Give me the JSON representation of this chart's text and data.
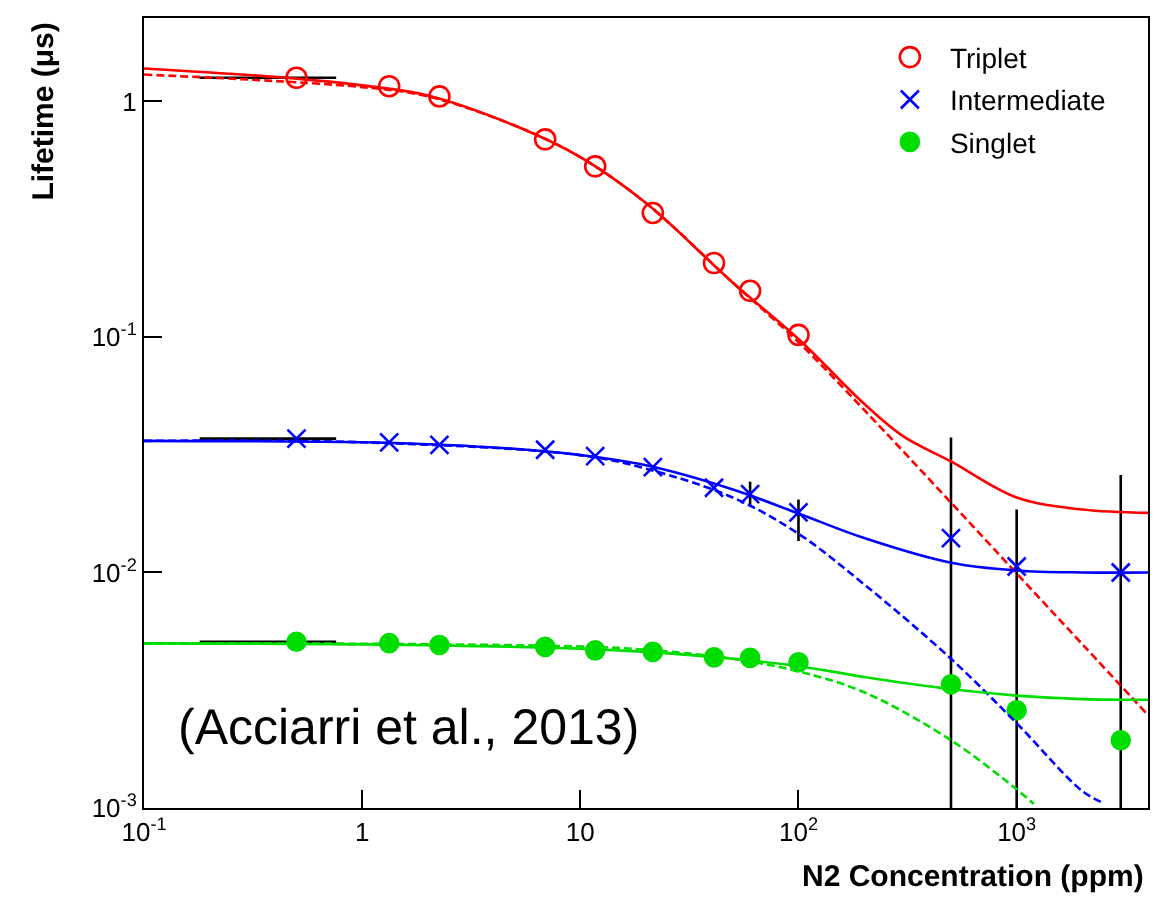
{
  "chart_data": {
    "type": "scatter",
    "xlabel": "N2 Concentration (ppm)",
    "ylabel": "Lifetime (μs)",
    "log": "xy",
    "legend": "top right",
    "xlim": [
      0.1,
      4000
    ],
    "ylim": [
      0.001,
      2.26
    ],
    "xticks": [
      {
        "value": 0.1,
        "label": "10$^{-1}$"
      },
      1,
      10,
      {
        "value": 100,
        "label": "10$^{2}$"
      },
      {
        "value": 1000,
        "label": "10$^{3}$"
      }
    ],
    "yticks": [
      {
        "value": 0.001,
        "label": "10$^{-3}$"
      },
      {
        "value": 0.01,
        "label": "10$^{-2}$"
      },
      {
        "value": 0.1,
        "label": "10$^{-1}$"
      },
      1
    ],
    "annotations": [
      "(Acciarri et al., 2013)"
    ],
    "x": [
      0.5,
      1.33,
      2.26,
      6.9,
      11.7,
      21.5,
      41,
      60,
      100,
      500,
      1000,
      3000
    ],
    "series": [
      {
        "name": "Triplet",
        "color": "#ff0000",
        "marker": "circle-open",
        "x": [
          0.5,
          1.33,
          2.26,
          6.9,
          11.7,
          21.5,
          41,
          60,
          100
        ],
        "values": [
          1.26,
          1.16,
          1.05,
          0.69,
          0.53,
          0.336,
          0.206,
          0.157,
          0.102
        ],
        "xerrors": [
          [
            0.18,
            0.76
          ],
          null,
          null,
          null,
          null,
          null,
          null,
          null,
          null
        ]
      },
      {
        "name": "Intermediate",
        "color": "#0000ff",
        "marker": "cross",
        "values": [
          0.037,
          0.0357,
          0.0348,
          0.0332,
          0.0312,
          0.028,
          0.0229,
          0.0215,
          0.018,
          0.014,
          0.0106,
          0.01
        ],
        "xerrors": [
          [
            0.18,
            0.76
          ],
          null,
          null,
          null,
          null,
          null,
          null,
          null,
          null,
          null,
          null,
          null
        ],
        "errors": [
          null,
          null,
          null,
          null,
          null,
          null,
          null,
          [
            0.0193,
            0.0243
          ],
          [
            0.0136,
            0.0204
          ],
          [
            0.001,
            0.0374
          ],
          [
            0.001,
            0.0185
          ],
          [
            0.001,
            0.0259
          ]
        ]
      },
      {
        "name": "Singlet",
        "color": "#00dd00",
        "marker": "circle",
        "values": [
          0.00508,
          0.00501,
          0.00492,
          0.00483,
          0.00467,
          0.0046,
          0.00436,
          0.00434,
          0.00416,
          0.00335,
          0.0026,
          0.00194
        ],
        "xerrors": [
          [
            0.18,
            0.76
          ],
          null,
          null,
          null,
          null,
          null,
          null,
          null,
          null,
          null,
          null,
          null
        ]
      },
      {
        "type": "line",
        "color": "#ff0000",
        "line_style": "solid",
        "x": [
          0.1,
          0.5,
          1,
          2,
          5,
          10,
          20,
          50,
          100,
          200,
          300,
          500,
          1000,
          2000,
          4000
        ],
        "values": [
          1.38,
          1.25,
          1.17,
          1.06,
          0.79,
          0.58,
          0.37,
          0.17,
          0.098,
          0.052,
          0.038,
          0.0296,
          0.0208,
          0.0185,
          0.0179
        ]
      },
      {
        "type": "line",
        "color": "#ff0000",
        "line_style": "dashed",
        "x": [
          0.1,
          1,
          2,
          5,
          10,
          20,
          50,
          100,
          200,
          500,
          1000,
          2000,
          4000
        ],
        "values": [
          1.3,
          1.15,
          1.05,
          0.79,
          0.58,
          0.37,
          0.17,
          0.095,
          0.049,
          0.0198,
          0.0099,
          0.00496,
          0.00248
        ]
      },
      {
        "type": "line",
        "color": "#0000ff",
        "line_style": "solid",
        "x": [
          0.1,
          1,
          2,
          5,
          10,
          20,
          50,
          100,
          200,
          500,
          1000,
          2000,
          4000
        ],
        "values": [
          0.0362,
          0.0357,
          0.035,
          0.0335,
          0.0315,
          0.0285,
          0.0225,
          0.0178,
          0.014,
          0.011,
          0.0102,
          0.01,
          0.01
        ]
      },
      {
        "type": "line",
        "color": "#0000ff",
        "line_style": "dashed",
        "x": [
          0.1,
          1,
          10,
          20,
          50,
          100,
          200,
          500,
          1000,
          2000,
          2500
        ],
        "values": [
          0.0362,
          0.0357,
          0.0315,
          0.0276,
          0.0208,
          0.0146,
          0.0089,
          0.0043,
          0.00229,
          0.00118,
          0.00105
        ]
      },
      {
        "type": "line",
        "color": "#00dd00",
        "line_style": "solid",
        "x": [
          0.1,
          1,
          10,
          20,
          50,
          100,
          200,
          500,
          1000,
          2000,
          4000
        ],
        "values": [
          0.005,
          0.00495,
          0.00475,
          0.0046,
          0.0043,
          0.004,
          0.0036,
          0.0032,
          0.003,
          0.0029,
          0.00288
        ]
      },
      {
        "type": "line",
        "color": "#00dd00",
        "line_style": "dashed",
        "x": [
          0.1,
          1,
          10,
          20,
          50,
          100,
          200,
          500,
          1000,
          1200
        ],
        "values": [
          0.005,
          0.00498,
          0.00485,
          0.0047,
          0.0043,
          0.0038,
          0.0031,
          0.00194,
          0.0012,
          0.00104
        ]
      }
    ]
  }
}
